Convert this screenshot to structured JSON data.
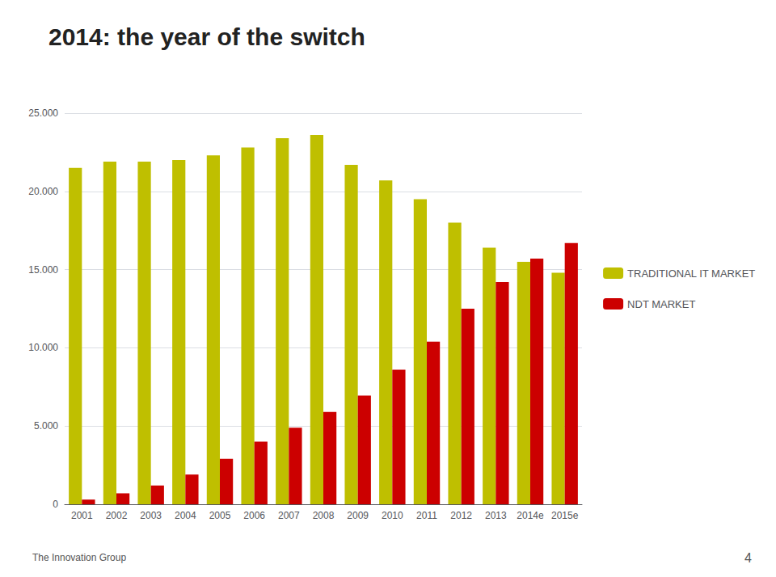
{
  "chart_data": {
    "type": "bar",
    "title": "2014: the year of the switch",
    "categories": [
      "2001",
      "2002",
      "2003",
      "2004",
      "2005",
      "2006",
      "2007",
      "2008",
      "2009",
      "2010",
      "2011",
      "2012",
      "2013",
      "2014e",
      "2015e"
    ],
    "series": [
      {
        "name": "TRADITIONAL IT MARKET",
        "color": "#BFBF00",
        "values": [
          21500,
          21900,
          21900,
          22000,
          22300,
          22800,
          23400,
          23600,
          21700,
          20700,
          19500,
          18000,
          16400,
          15500,
          14800
        ]
      },
      {
        "name": "NDT MARKET",
        "color": "#CC0000",
        "values": [
          300,
          700,
          1200,
          1900,
          2900,
          4000,
          4900,
          5900,
          6950,
          8600,
          10400,
          12500,
          14200,
          15700,
          16700
        ]
      }
    ],
    "ylim": [
      0,
      25000
    ],
    "yticks": [
      0,
      {
        "value": 5000,
        "label": "5.000"
      },
      {
        "value": 10000,
        "label": "10.000"
      },
      {
        "value": 15000,
        "label": "15.000"
      },
      {
        "value": 20000,
        "label": "20.000"
      },
      {
        "value": 25000,
        "label": "25.000"
      }
    ],
    "grid": true,
    "legend": "right",
    "annotations": [
      "The Innovation Group",
      "4"
    ]
  }
}
